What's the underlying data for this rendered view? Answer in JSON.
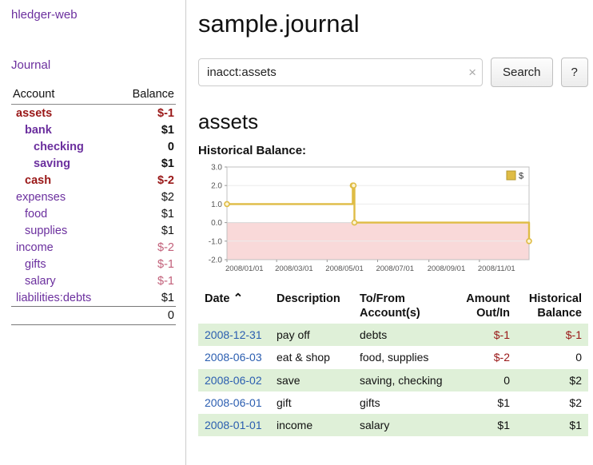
{
  "colors": {
    "accent_purple": "#6b2f9e",
    "negative_dark": "#991717",
    "negative_light": "#c2607a",
    "link_blue": "#2a5db0",
    "stripe_green": "#dff0d8",
    "chart_gold": "#dfbc45",
    "chart_negative_bg": "#f9d9d9"
  },
  "app": {
    "title": "hledger-web",
    "nav_journal": "Journal"
  },
  "sidebar": {
    "header": {
      "account": "Account",
      "balance": "Balance"
    },
    "accounts": [
      {
        "name": "assets",
        "level": 0,
        "bold": true,
        "name_style": "darkred",
        "balance": "$-1",
        "balance_style": "darkred"
      },
      {
        "name": "bank",
        "level": 1,
        "bold": true,
        "name_style": "purple",
        "balance": "$1",
        "balance_style": "black"
      },
      {
        "name": "checking",
        "level": 2,
        "bold": true,
        "name_style": "purple",
        "balance": "0",
        "balance_style": "black"
      },
      {
        "name": "saving",
        "level": 2,
        "bold": true,
        "name_style": "purple",
        "balance": "$1",
        "balance_style": "black"
      },
      {
        "name": "cash",
        "level": 1,
        "bold": true,
        "name_style": "darkred",
        "balance": "$-2",
        "balance_style": "darkred"
      },
      {
        "name": "expenses",
        "level": 0,
        "bold": false,
        "name_style": "purple",
        "balance": "$2",
        "balance_style": "black"
      },
      {
        "name": "food",
        "level": 1,
        "bold": false,
        "name_style": "purple",
        "balance": "$1",
        "balance_style": "black"
      },
      {
        "name": "supplies",
        "level": 1,
        "bold": false,
        "name_style": "purple",
        "balance": "$1",
        "balance_style": "black"
      },
      {
        "name": "income",
        "level": 0,
        "bold": false,
        "name_style": "purple",
        "balance": "$-2",
        "balance_style": "lightred"
      },
      {
        "name": "gifts",
        "level": 1,
        "bold": false,
        "name_style": "purple",
        "balance": "$-1",
        "balance_style": "lightred"
      },
      {
        "name": "salary",
        "level": 1,
        "bold": false,
        "name_style": "purple",
        "balance": "$-1",
        "balance_style": "lightred"
      },
      {
        "name": "liabilities:debts",
        "level": 0,
        "bold": false,
        "name_style": "purple",
        "balance": "$1",
        "balance_style": "black"
      }
    ],
    "total": "0"
  },
  "main": {
    "title": "sample.journal",
    "search": {
      "value": "inacct:assets",
      "clear_icon": "×",
      "button": "Search",
      "help": "?"
    },
    "heading": "assets",
    "chart_label": "Historical Balance:"
  },
  "chart_data": {
    "type": "line",
    "step": true,
    "title": "Historical Balance:",
    "legend": [
      {
        "label": "$",
        "color": "#dfbc45"
      }
    ],
    "ylim": [
      -2,
      3
    ],
    "yticks": [
      "3.0",
      "2.0",
      "1.0",
      "0.0",
      "-1.0",
      "-2.0"
    ],
    "xticks": [
      "2008/01/01",
      "2008/03/01",
      "2008/05/01",
      "2008/07/01",
      "2008/09/01",
      "2008/11/01"
    ],
    "xrange": [
      "2008-01-01",
      "2008-12-31"
    ],
    "series": [
      {
        "name": "$",
        "points": [
          {
            "date": "2008-01-01",
            "balance": 1
          },
          {
            "date": "2008-06-01",
            "balance": 2
          },
          {
            "date": "2008-06-02",
            "balance": 2
          },
          {
            "date": "2008-06-03",
            "balance": 0
          },
          {
            "date": "2008-12-31",
            "balance": -1
          }
        ]
      }
    ]
  },
  "table": {
    "headers": [
      {
        "label": "Date",
        "sort": "⌃",
        "align": "left"
      },
      {
        "label": "Description",
        "align": "left"
      },
      {
        "label": "To/From Account(s)",
        "align": "left"
      },
      {
        "label": "Amount Out/In",
        "align": "right"
      },
      {
        "label": "Historical Balance",
        "align": "right"
      }
    ],
    "rows": [
      {
        "date": "2008-12-31",
        "description": "pay off",
        "accounts": "debts",
        "amount": "$-1",
        "balance": "$-1"
      },
      {
        "date": "2008-06-03",
        "description": "eat & shop",
        "accounts": "food, supplies",
        "amount": "$-2",
        "balance": "0"
      },
      {
        "date": "2008-06-02",
        "description": "save",
        "accounts": "saving, checking",
        "amount": "0",
        "balance": "$2"
      },
      {
        "date": "2008-06-01",
        "description": "gift",
        "accounts": "gifts",
        "amount": "$1",
        "balance": "$2"
      },
      {
        "date": "2008-01-01",
        "description": "income",
        "accounts": "salary",
        "amount": "$1",
        "balance": "$1"
      }
    ]
  }
}
